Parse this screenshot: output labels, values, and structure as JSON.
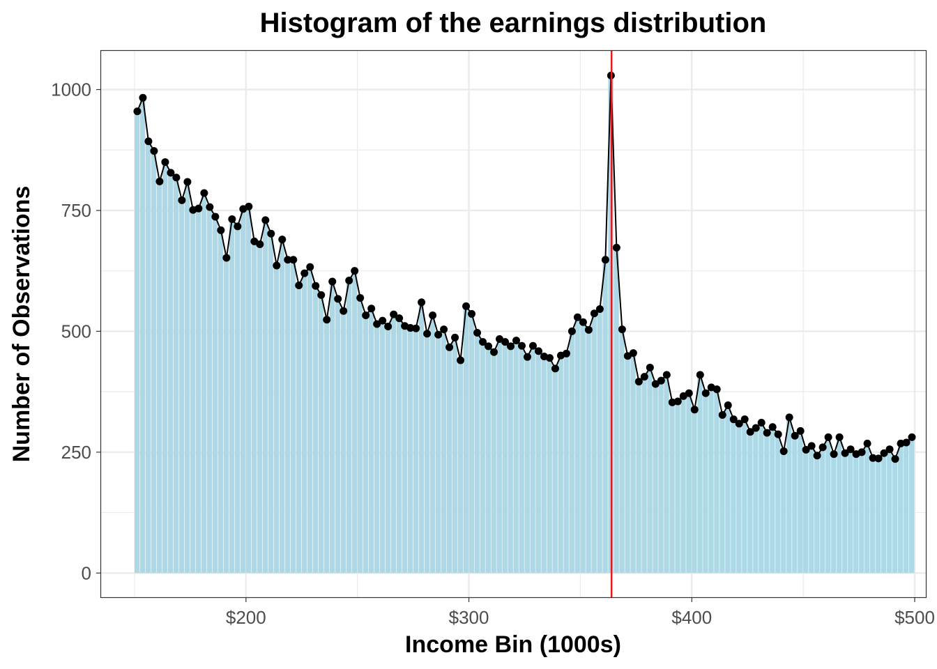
{
  "colors": {
    "bar_fill": "#add8e6",
    "line": "#000000",
    "reference_line": "#e41a1c",
    "grid": "#ebebeb",
    "panel_border": "#333333",
    "tick_text": "#4d4d4d"
  },
  "chart_data": {
    "type": "bar",
    "overlay": "line-with-points",
    "title": "Histogram of the earnings distribution",
    "xlabel": "Income Bin (1000s)",
    "ylabel": "Number of Observations",
    "xlim": [
      135,
      505
    ],
    "ylim": [
      -50,
      1080
    ],
    "x_ticks": [
      200,
      300,
      400,
      500
    ],
    "x_tick_labels": [
      "$200",
      "$300",
      "$400",
      "$500"
    ],
    "y_ticks": [
      0,
      250,
      500,
      750,
      1000
    ],
    "y_tick_labels": [
      "0",
      "250",
      "500",
      "750",
      "1000"
    ],
    "grid": true,
    "legend": "none",
    "bin_width": 2.5,
    "reference_line_x": 364,
    "x": [
      152.5,
      155,
      157.5,
      160,
      162.5,
      165,
      167.5,
      170,
      172.5,
      175,
      177.5,
      180,
      182.5,
      185,
      187.5,
      190,
      192.5,
      195,
      197.5,
      200,
      202.5,
      205,
      207.5,
      210,
      212.5,
      215,
      217.5,
      220,
      222.5,
      225,
      227.5,
      230,
      232.5,
      235,
      237.5,
      240,
      242.5,
      245,
      247.5,
      250,
      252.5,
      255,
      257.5,
      260,
      262.5,
      265,
      267.5,
      270,
      272.5,
      275,
      277.5,
      280,
      282.5,
      285,
      287.5,
      290,
      292.5,
      295,
      297.5,
      300,
      302.5,
      305,
      307.5,
      310,
      312.5,
      315,
      317.5,
      320,
      322.5,
      325,
      327.5,
      330,
      332.5,
      335,
      337.5,
      340,
      342.5,
      345,
      347.5,
      350,
      352.5,
      355,
      357.5,
      360,
      362.5,
      365,
      367.5,
      370,
      372.5,
      375,
      377.5,
      380,
      382.5,
      385,
      387.5,
      390,
      392.5,
      395,
      397.5,
      400,
      402.5,
      405,
      407.5,
      410,
      412.5,
      415,
      417.5,
      420,
      422.5,
      425,
      427.5,
      430,
      432.5,
      435,
      437.5,
      440,
      442.5,
      445,
      447.5,
      450,
      452.5,
      455,
      457.5,
      460,
      462.5,
      465,
      467.5,
      470,
      472.5,
      475,
      477.5,
      480,
      482.5,
      485,
      487.5,
      490,
      492.5,
      495,
      497.5,
      500
    ],
    "values": [
      955,
      983,
      893,
      873,
      810,
      850,
      828,
      818,
      771,
      809,
      751,
      754,
      786,
      757,
      737,
      709,
      652,
      732,
      717,
      753,
      758,
      686,
      680,
      730,
      702,
      636,
      690,
      648,
      648,
      595,
      620,
      633,
      594,
      575,
      524,
      603,
      567,
      542,
      605,
      625,
      569,
      533,
      547,
      515,
      522,
      510,
      535,
      527,
      511,
      507,
      506,
      560,
      495,
      533,
      493,
      504,
      467,
      487,
      440,
      552,
      536,
      497,
      478,
      469,
      457,
      484,
      478,
      469,
      481,
      470,
      447,
      470,
      459,
      448,
      445,
      423,
      450,
      454,
      500,
      529,
      519,
      503,
      537,
      546,
      648,
      1029,
      673,
      504,
      449,
      455,
      396,
      406,
      425,
      391,
      398,
      410,
      353,
      355,
      366,
      372,
      338,
      410,
      372,
      384,
      380,
      327,
      347,
      318,
      309,
      318,
      292,
      300,
      311,
      290,
      302,
      287,
      252,
      322,
      284,
      294,
      255,
      263,
      243,
      260,
      281,
      246,
      281,
      248,
      256,
      246,
      250,
      268,
      238,
      237,
      248,
      256,
      236,
      268,
      270,
      281
    ]
  }
}
